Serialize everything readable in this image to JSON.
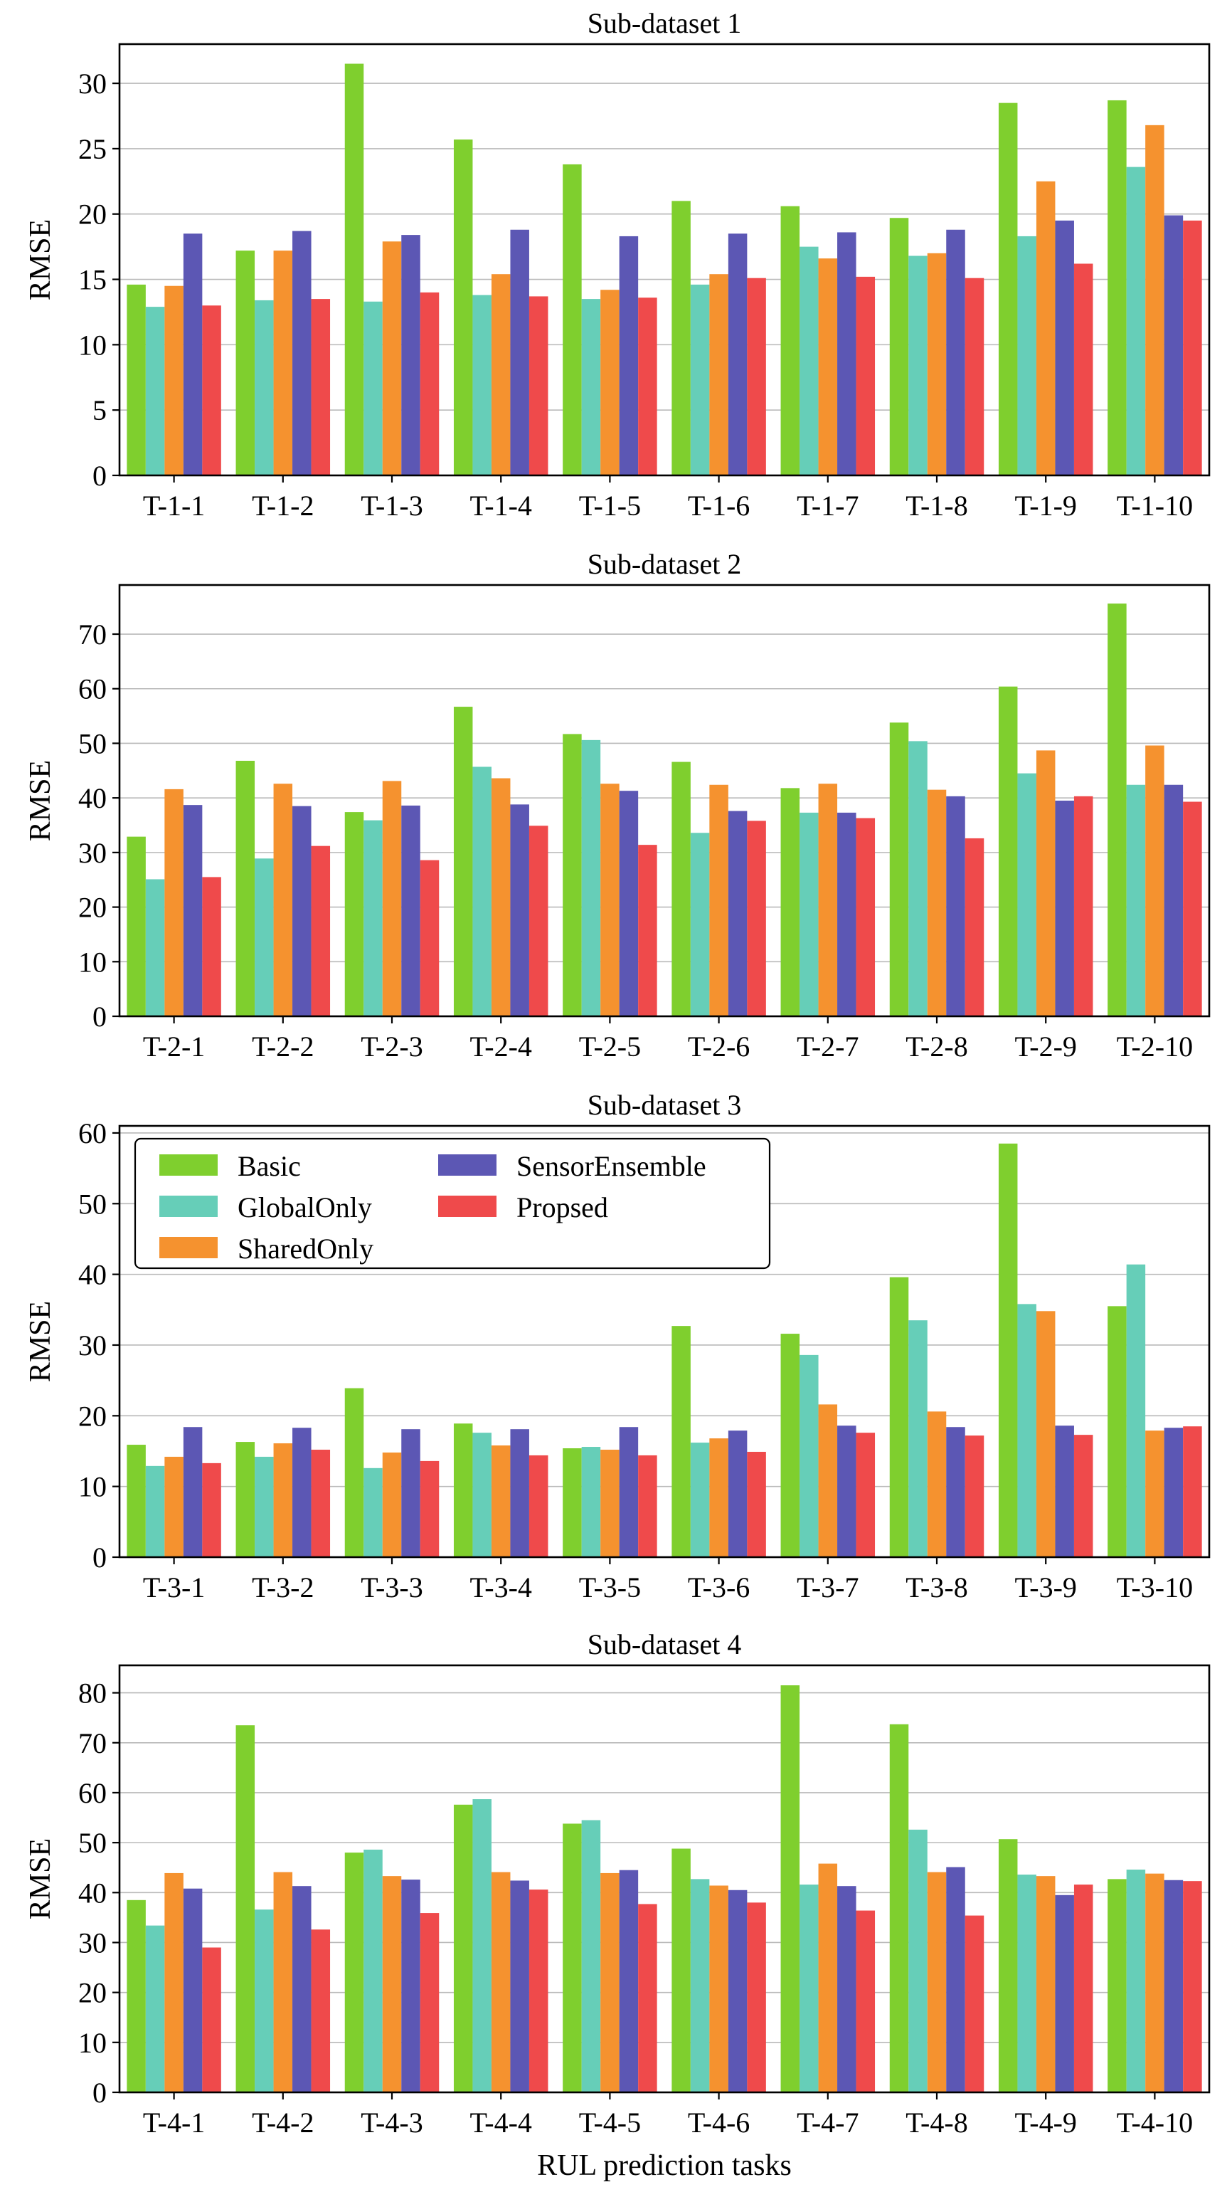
{
  "colors": {
    "Basic": "#7fcf2e",
    "GlobalOnly": "#66ceb8",
    "SharedOnly": "#f5922f",
    "SensorEnsemble": "#5c57b4",
    "Propsed": "#ef4a4b"
  },
  "xlabel": "RUL prediction tasks",
  "chart_data": [
    {
      "type": "bar",
      "title": "Sub-dataset 1",
      "ylabel": "RMSE",
      "ylim": [
        0,
        33
      ],
      "yticks": [
        0,
        5,
        10,
        15,
        20,
        25,
        30
      ],
      "grid": true,
      "categories": [
        "T-1-1",
        "T-1-2",
        "T-1-3",
        "T-1-4",
        "T-1-5",
        "T-1-6",
        "T-1-7",
        "T-1-8",
        "T-1-9",
        "T-1-10"
      ],
      "series": [
        {
          "name": "Basic",
          "values": [
            14.6,
            17.2,
            31.5,
            25.7,
            23.8,
            21.0,
            20.6,
            19.7,
            28.5,
            28.7
          ]
        },
        {
          "name": "GlobalOnly",
          "values": [
            12.9,
            13.4,
            13.3,
            13.8,
            13.5,
            14.6,
            17.5,
            16.8,
            18.3,
            23.6
          ]
        },
        {
          "name": "SharedOnly",
          "values": [
            14.5,
            17.2,
            17.9,
            15.4,
            14.2,
            15.4,
            16.6,
            17.0,
            22.5,
            26.8
          ]
        },
        {
          "name": "SensorEnsemble",
          "values": [
            18.5,
            18.7,
            18.4,
            18.8,
            18.3,
            18.5,
            18.6,
            18.8,
            19.5,
            19.9
          ]
        },
        {
          "name": "Propsed",
          "values": [
            13.0,
            13.5,
            14.0,
            13.7,
            13.6,
            15.1,
            15.2,
            15.1,
            16.2,
            19.5
          ]
        }
      ]
    },
    {
      "type": "bar",
      "title": "Sub-dataset 2",
      "ylabel": "RMSE",
      "ylim": [
        0,
        79
      ],
      "yticks": [
        0,
        10,
        20,
        30,
        40,
        50,
        60,
        70
      ],
      "grid": true,
      "categories": [
        "T-2-1",
        "T-2-2",
        "T-2-3",
        "T-2-4",
        "T-2-5",
        "T-2-6",
        "T-2-7",
        "T-2-8",
        "T-2-9",
        "T-2-10"
      ],
      "series": [
        {
          "name": "Basic",
          "values": [
            32.9,
            46.8,
            37.4,
            56.7,
            51.7,
            46.6,
            41.8,
            53.8,
            60.4,
            75.6
          ]
        },
        {
          "name": "GlobalOnly",
          "values": [
            25.1,
            28.9,
            35.9,
            45.7,
            50.6,
            33.6,
            37.3,
            50.4,
            44.5,
            42.4
          ]
        },
        {
          "name": "SharedOnly",
          "values": [
            41.6,
            42.6,
            43.1,
            43.6,
            42.6,
            42.4,
            42.6,
            41.5,
            48.7,
            49.6
          ]
        },
        {
          "name": "SensorEnsemble",
          "values": [
            38.7,
            38.5,
            38.6,
            38.8,
            41.3,
            37.6,
            37.3,
            40.3,
            39.5,
            42.4
          ]
        },
        {
          "name": "Propsed",
          "values": [
            25.5,
            31.2,
            28.6,
            34.9,
            31.4,
            35.8,
            36.3,
            32.6,
            40.3,
            39.3
          ]
        }
      ]
    },
    {
      "type": "bar",
      "title": "Sub-dataset 3",
      "ylabel": "RMSE",
      "ylim": [
        0,
        61
      ],
      "yticks": [
        0,
        10,
        20,
        30,
        40,
        50,
        60
      ],
      "grid": true,
      "legend": "top-left",
      "categories": [
        "T-3-1",
        "T-3-2",
        "T-3-3",
        "T-3-4",
        "T-3-5",
        "T-3-6",
        "T-3-7",
        "T-3-8",
        "T-3-9",
        "T-3-10"
      ],
      "series": [
        {
          "name": "Basic",
          "values": [
            15.9,
            16.3,
            23.9,
            18.9,
            15.4,
            32.7,
            31.6,
            39.6,
            58.5,
            35.5
          ]
        },
        {
          "name": "GlobalOnly",
          "values": [
            12.9,
            14.2,
            12.6,
            17.6,
            15.6,
            16.2,
            28.6,
            33.5,
            35.8,
            41.4
          ]
        },
        {
          "name": "SharedOnly",
          "values": [
            14.2,
            16.1,
            14.8,
            15.8,
            15.2,
            16.8,
            21.6,
            20.6,
            34.8,
            17.9
          ]
        },
        {
          "name": "SensorEnsemble",
          "values": [
            18.4,
            18.3,
            18.1,
            18.1,
            18.4,
            17.9,
            18.6,
            18.4,
            18.6,
            18.3
          ]
        },
        {
          "name": "Propsed",
          "values": [
            13.3,
            15.2,
            13.6,
            14.4,
            14.4,
            14.9,
            17.6,
            17.2,
            17.3,
            18.5
          ]
        }
      ]
    },
    {
      "type": "bar",
      "title": "Sub-dataset 4",
      "ylabel": "RMSE",
      "ylim": [
        0,
        85.5
      ],
      "yticks": [
        0,
        10,
        20,
        30,
        40,
        50,
        60,
        70,
        80
      ],
      "grid": true,
      "categories": [
        "T-4-1",
        "T-4-2",
        "T-4-3",
        "T-4-4",
        "T-4-5",
        "T-4-6",
        "T-4-7",
        "T-4-8",
        "T-4-9",
        "T-4-10"
      ],
      "series": [
        {
          "name": "Basic",
          "values": [
            38.5,
            73.5,
            48.0,
            57.6,
            53.8,
            48.8,
            81.5,
            73.7,
            50.7,
            42.7
          ]
        },
        {
          "name": "GlobalOnly",
          "values": [
            33.4,
            36.6,
            48.6,
            58.7,
            54.5,
            42.7,
            41.6,
            52.6,
            43.6,
            44.6
          ]
        },
        {
          "name": "SharedOnly",
          "values": [
            43.9,
            44.1,
            43.3,
            44.1,
            43.9,
            41.4,
            45.8,
            44.1,
            43.3,
            43.8
          ]
        },
        {
          "name": "SensorEnsemble",
          "values": [
            40.8,
            41.3,
            42.6,
            42.4,
            44.5,
            40.5,
            41.3,
            45.1,
            39.5,
            42.5
          ]
        },
        {
          "name": "Propsed",
          "values": [
            29.0,
            32.6,
            35.9,
            40.6,
            37.7,
            38.0,
            36.4,
            35.4,
            41.6,
            42.3
          ]
        }
      ]
    }
  ]
}
